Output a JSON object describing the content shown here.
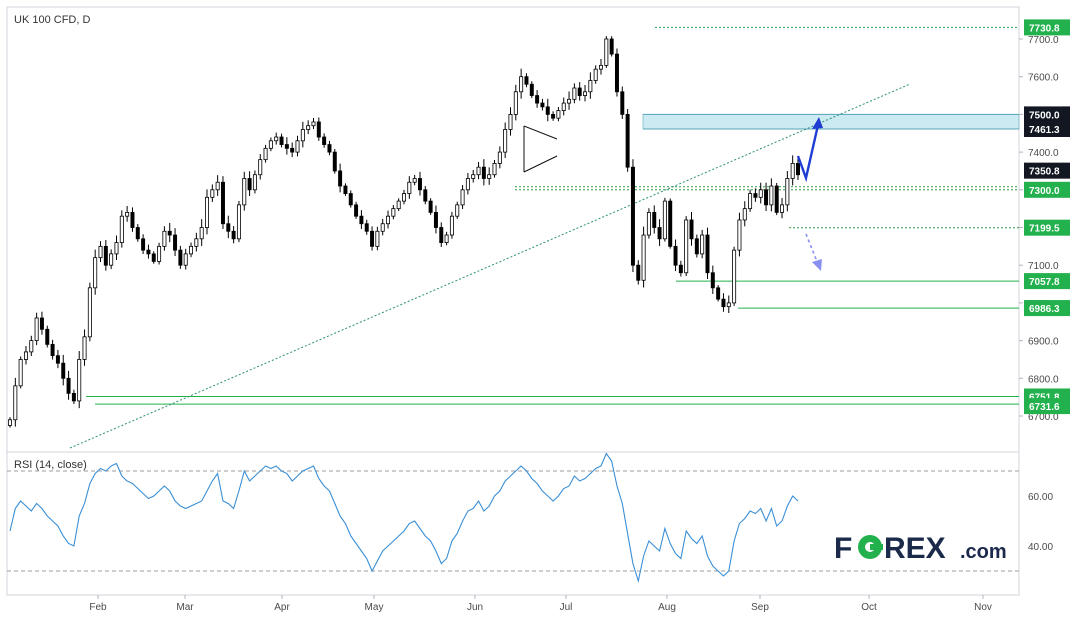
{
  "colors": {
    "green": "#22b14c",
    "greenDotted": "#2e9e45",
    "label_dark": "#131722",
    "zone": "#b9e3ec",
    "zone_border": "#5aa7b8",
    "trend": "#2a8f78",
    "rsi": "#3a8fd6",
    "arrow_solid": "#1f3cd3",
    "arrow_dashed": "#8a8ff2",
    "candle": "#000000"
  },
  "chart_data": [
    {
      "type": "candlestick",
      "title": "UK 100 CFD, D",
      "y_ticks": [
        "6700.0",
        "6800.0",
        "6900.0",
        "7000.0",
        "7100.0",
        "7200.0",
        "7300.0",
        "7400.0",
        "7500.0",
        "7600.0",
        "7700.0"
      ],
      "x_ticks": [
        "Feb",
        "Mar",
        "Apr",
        "May",
        "Jun",
        "Jul",
        "Aug",
        "Sep",
        "Oct",
        "Nov"
      ],
      "ylim": [
        6640,
        7760
      ],
      "close_series": [
        6690,
        6780,
        6850,
        6870,
        6900,
        6960,
        6930,
        6890,
        6860,
        6840,
        6800,
        6760,
        6740,
        6850,
        6910,
        7040,
        7120,
        7150,
        7100,
        7130,
        7160,
        7230,
        7240,
        7200,
        7170,
        7140,
        7130,
        7110,
        7150,
        7190,
        7180,
        7140,
        7100,
        7130,
        7150,
        7170,
        7200,
        7280,
        7300,
        7320,
        7210,
        7190,
        7170,
        7260,
        7330,
        7300,
        7340,
        7380,
        7410,
        7430,
        7440,
        7420,
        7410,
        7400,
        7430,
        7460,
        7470,
        7480,
        7440,
        7420,
        7400,
        7350,
        7310,
        7290,
        7260,
        7230,
        7210,
        7190,
        7150,
        7190,
        7210,
        7230,
        7250,
        7270,
        7290,
        7320,
        7330,
        7300,
        7270,
        7240,
        7200,
        7160,
        7180,
        7230,
        7260,
        7300,
        7330,
        7340,
        7360,
        7330,
        7340,
        7370,
        7400,
        7460,
        7500,
        7560,
        7600,
        7580,
        7550,
        7530,
        7520,
        7500,
        7490,
        7510,
        7530,
        7540,
        7570,
        7550,
        7560,
        7590,
        7620,
        7630,
        7700,
        7660,
        7560,
        7500,
        7360,
        7100,
        7060,
        7180,
        7240,
        7200,
        7170,
        7270,
        7150,
        7100,
        7080,
        7220,
        7170,
        7130,
        7180,
        7080,
        7040,
        7010,
        6990,
        7000,
        7140,
        7220,
        7250,
        7290,
        7280,
        7300,
        7260,
        7310,
        7240,
        7260,
        7330,
        7370,
        7340
      ],
      "levels": [
        {
          "label": "7730.8",
          "value": 7730.8,
          "style": "green"
        },
        {
          "label": "7500.0",
          "value": 7500.0,
          "style": "dark"
        },
        {
          "label": "7461.3",
          "value": 7461.3,
          "style": "dark"
        },
        {
          "label": "7350.8",
          "value": 7350.8,
          "style": "dark"
        },
        {
          "label": "7300.0",
          "value": 7300.0,
          "style": "green"
        },
        {
          "label": "7199.5",
          "value": 7199.5,
          "style": "green"
        },
        {
          "label": "7057.8",
          "value": 7057.8,
          "style": "green"
        },
        {
          "label": "6986.3",
          "value": 6986.3,
          "style": "green"
        },
        {
          "label": "6751.8",
          "value": 6751.8,
          "style": "green"
        },
        {
          "label": "6731.6",
          "value": 6731.6,
          "style": "green"
        }
      ],
      "resistance_zone": [
        7461.3,
        7500.0
      ],
      "trendline": {
        "from": 6645,
        "to": 7600
      }
    },
    {
      "type": "line",
      "title": "RSI (14, close)",
      "y_ticks": [
        "40.00",
        "60.00"
      ],
      "ylim": [
        19,
        80
      ],
      "guides": [
        30,
        70
      ],
      "values": [
        46,
        55,
        58,
        56,
        54,
        57,
        55,
        52,
        50,
        48,
        44,
        41,
        40,
        52,
        57,
        65,
        69,
        71,
        70,
        72,
        73,
        68,
        66,
        65,
        63,
        61,
        59,
        60,
        62,
        64,
        62,
        58,
        56,
        55,
        56,
        57,
        58,
        62,
        66,
        69,
        58,
        57,
        55,
        62,
        70,
        66,
        68,
        70,
        72,
        71,
        72,
        70,
        69,
        66,
        68,
        70,
        71,
        72,
        67,
        64,
        62,
        57,
        52,
        49,
        44,
        41,
        38,
        35,
        30,
        34,
        38,
        40,
        42,
        44,
        46,
        49,
        50,
        47,
        44,
        42,
        38,
        33,
        35,
        42,
        45,
        50,
        54,
        55,
        58,
        54,
        56,
        60,
        62,
        66,
        68,
        70,
        72,
        70,
        67,
        65,
        62,
        60,
        58,
        60,
        63,
        64,
        68,
        66,
        67,
        69,
        71,
        72,
        77,
        74,
        64,
        57,
        45,
        33,
        26,
        36,
        42,
        40,
        38,
        47,
        41,
        37,
        35,
        46,
        43,
        41,
        44,
        36,
        32,
        30,
        28,
        30,
        42,
        49,
        51,
        54,
        53,
        55,
        50,
        55,
        48,
        50,
        56,
        60,
        58
      ]
    }
  ],
  "watermark": {
    "brand": "F",
    "brand_rest": "REX",
    "suffix": ".com"
  }
}
